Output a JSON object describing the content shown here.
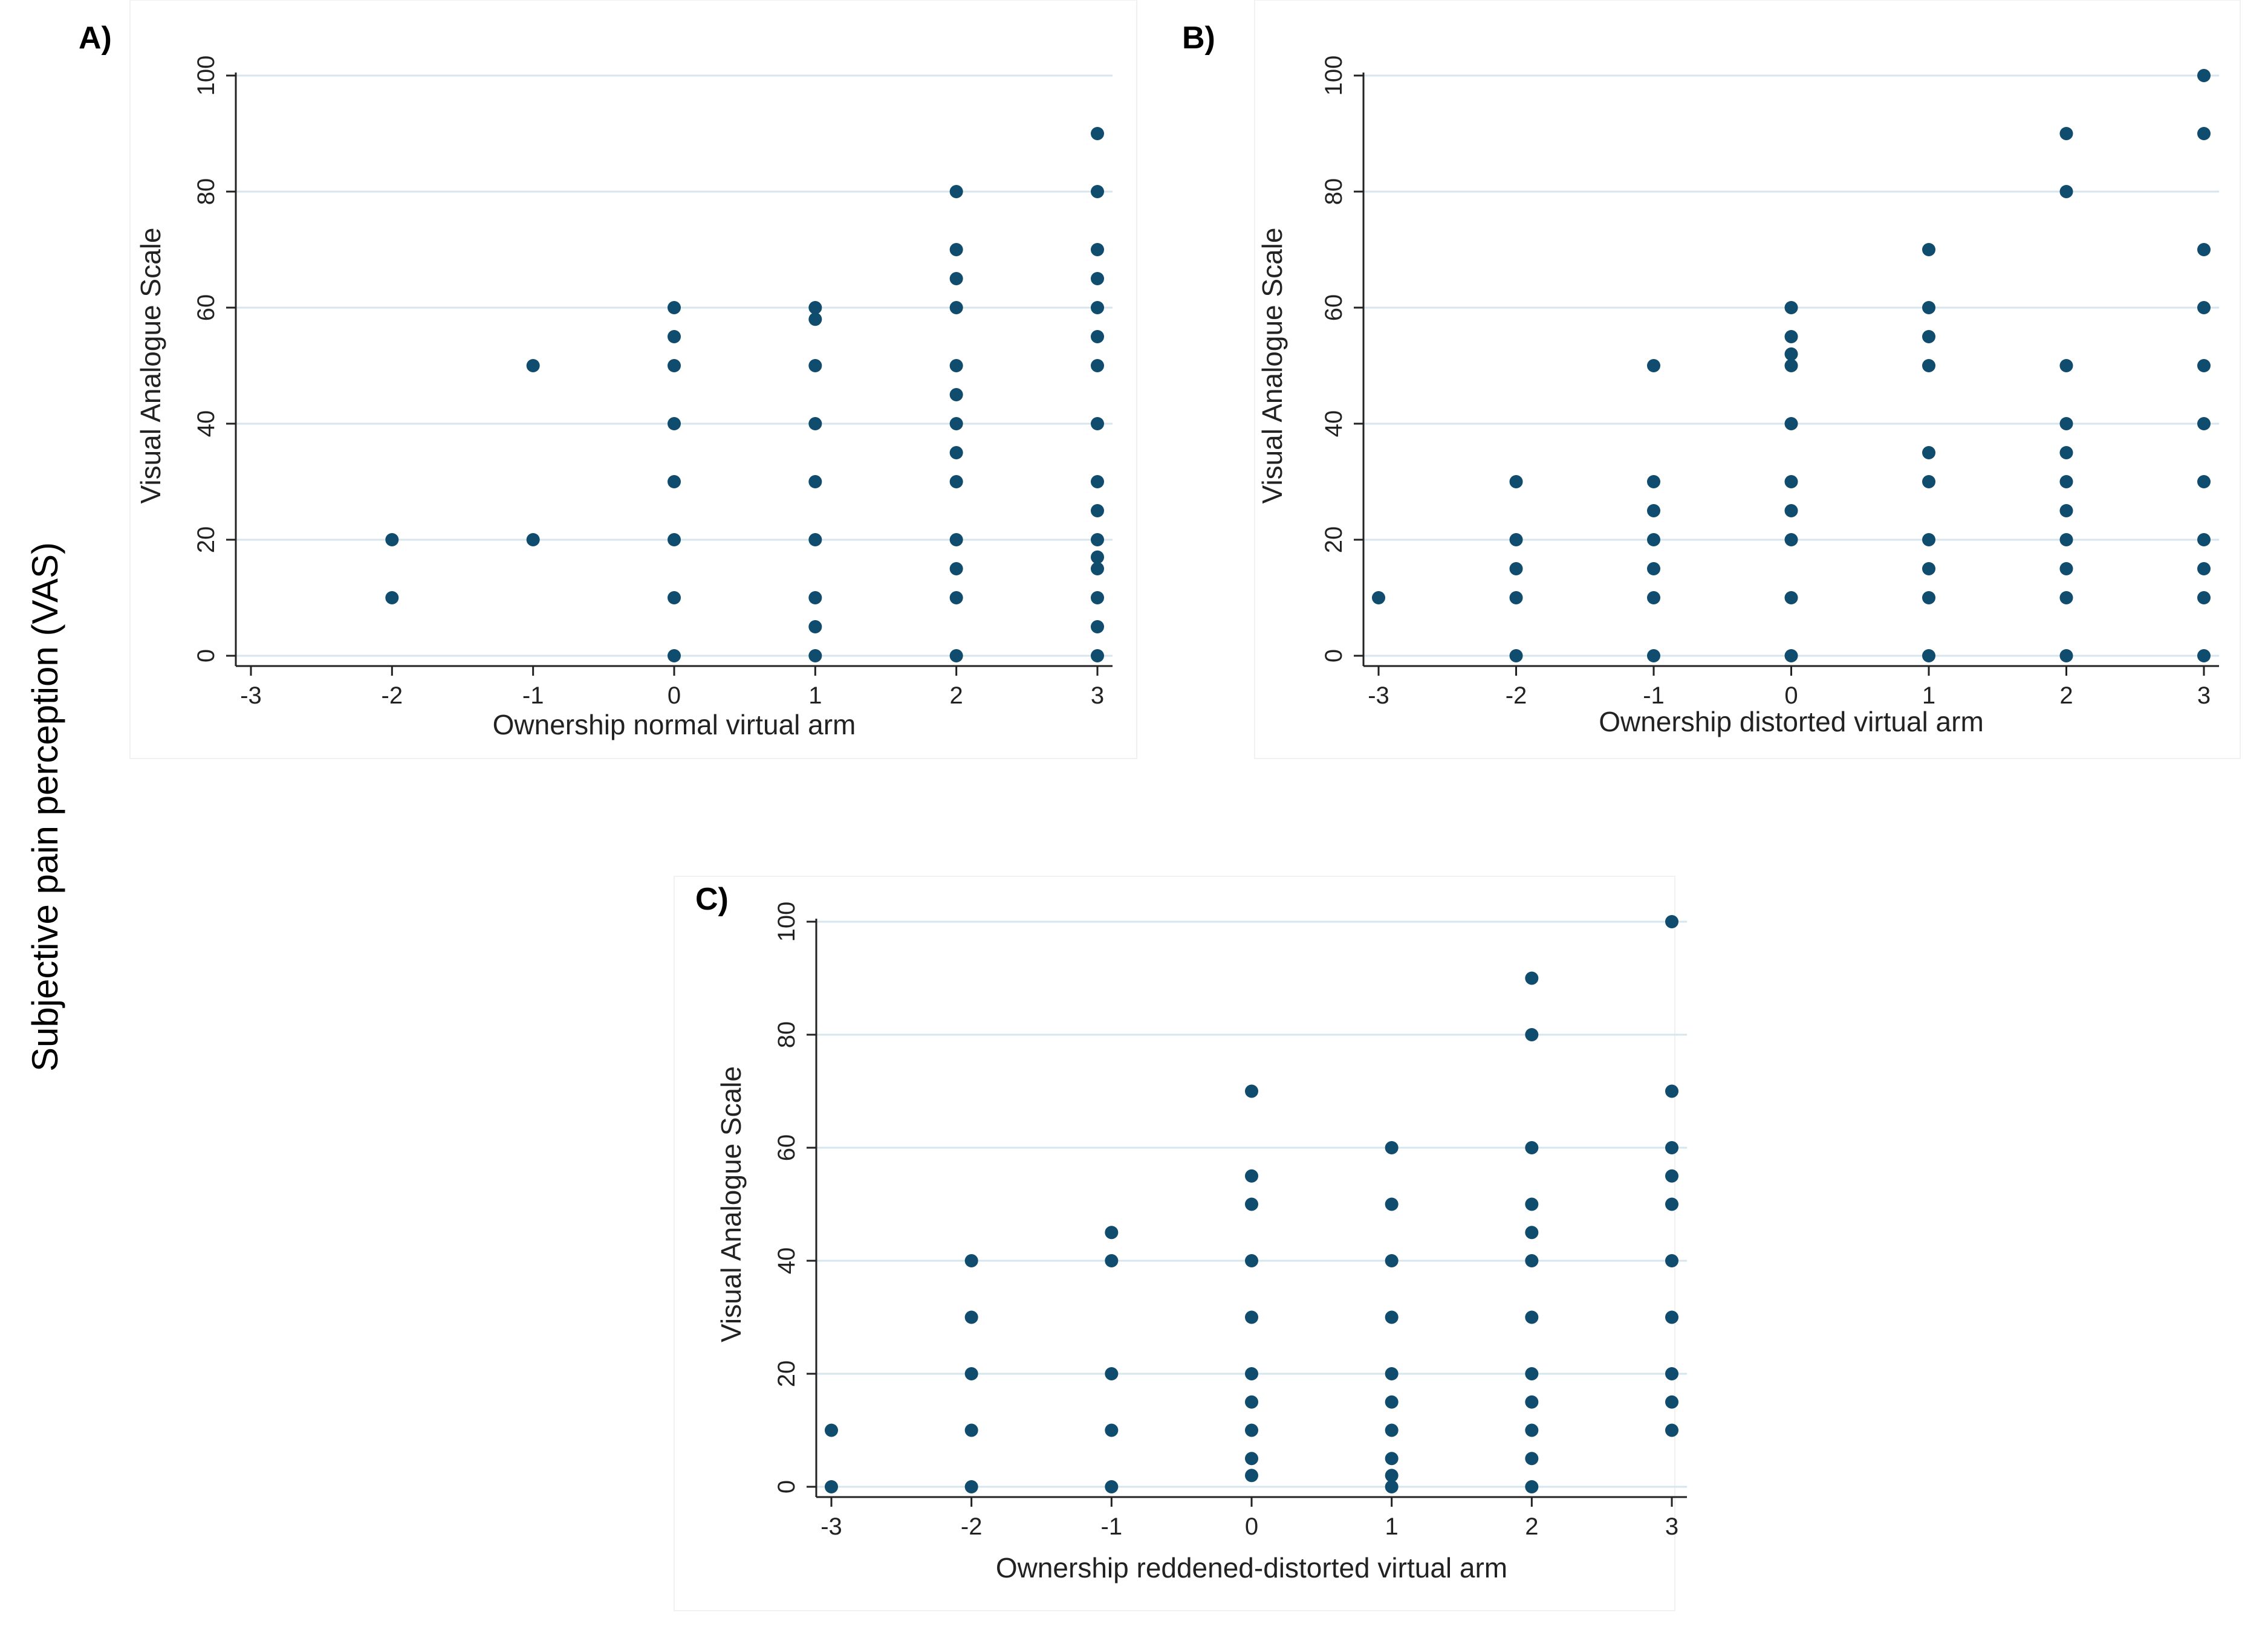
{
  "figure": {
    "ylabel_global": "Subjective pain perception (VAS)",
    "colors": {
      "marker": "#0f4c6e",
      "grid": "#d6e6ee",
      "axis": "#222222"
    }
  },
  "chart_data": [
    {
      "panel_label": "A)",
      "type": "scatter",
      "xlabel": "Ownership normal virtual arm",
      "ylabel": "Visual Analogue Scale",
      "xlim": [
        -3,
        3
      ],
      "ylim": [
        0,
        100
      ],
      "xticks": [
        -3,
        -2,
        -1,
        0,
        1,
        2,
        3
      ],
      "yticks": [
        0,
        20,
        40,
        60,
        80,
        100
      ],
      "grid": true,
      "points": [
        [
          -2,
          10
        ],
        [
          -2,
          20
        ],
        [
          -1,
          20
        ],
        [
          -1,
          50
        ],
        [
          0,
          0
        ],
        [
          0,
          10
        ],
        [
          0,
          20
        ],
        [
          0,
          30
        ],
        [
          0,
          40
        ],
        [
          0,
          50
        ],
        [
          0,
          55
        ],
        [
          0,
          60
        ],
        [
          1,
          0
        ],
        [
          1,
          5
        ],
        [
          1,
          10
        ],
        [
          1,
          20
        ],
        [
          1,
          30
        ],
        [
          1,
          40
        ],
        [
          1,
          50
        ],
        [
          1,
          58
        ],
        [
          1,
          60
        ],
        [
          2,
          0
        ],
        [
          2,
          10
        ],
        [
          2,
          15
        ],
        [
          2,
          20
        ],
        [
          2,
          30
        ],
        [
          2,
          35
        ],
        [
          2,
          40
        ],
        [
          2,
          45
        ],
        [
          2,
          50
        ],
        [
          2,
          60
        ],
        [
          2,
          65
        ],
        [
          2,
          70
        ],
        [
          2,
          80
        ],
        [
          3,
          0
        ],
        [
          3,
          5
        ],
        [
          3,
          10
        ],
        [
          3,
          15
        ],
        [
          3,
          17
        ],
        [
          3,
          20
        ],
        [
          3,
          25
        ],
        [
          3,
          30
        ],
        [
          3,
          40
        ],
        [
          3,
          50
        ],
        [
          3,
          55
        ],
        [
          3,
          60
        ],
        [
          3,
          65
        ],
        [
          3,
          70
        ],
        [
          3,
          80
        ],
        [
          3,
          90
        ]
      ]
    },
    {
      "panel_label": "B)",
      "type": "scatter",
      "xlabel": "Ownership distorted virtual arm",
      "ylabel": "Visual Analogue Scale",
      "xlim": [
        -3,
        3
      ],
      "ylim": [
        0,
        100
      ],
      "xticks": [
        -3,
        -2,
        -1,
        0,
        1,
        2,
        3
      ],
      "yticks": [
        0,
        20,
        40,
        60,
        80,
        100
      ],
      "grid": true,
      "points": [
        [
          -3,
          10
        ],
        [
          -2,
          0
        ],
        [
          -2,
          10
        ],
        [
          -2,
          15
        ],
        [
          -2,
          20
        ],
        [
          -2,
          30
        ],
        [
          -1,
          0
        ],
        [
          -1,
          10
        ],
        [
          -1,
          15
        ],
        [
          -1,
          20
        ],
        [
          -1,
          25
        ],
        [
          -1,
          30
        ],
        [
          -1,
          50
        ],
        [
          0,
          0
        ],
        [
          0,
          10
        ],
        [
          0,
          20
        ],
        [
          0,
          25
        ],
        [
          0,
          30
        ],
        [
          0,
          40
        ],
        [
          0,
          50
        ],
        [
          0,
          52
        ],
        [
          0,
          55
        ],
        [
          0,
          60
        ],
        [
          1,
          0
        ],
        [
          1,
          10
        ],
        [
          1,
          15
        ],
        [
          1,
          20
        ],
        [
          1,
          30
        ],
        [
          1,
          35
        ],
        [
          1,
          50
        ],
        [
          1,
          55
        ],
        [
          1,
          60
        ],
        [
          1,
          70
        ],
        [
          2,
          0
        ],
        [
          2,
          10
        ],
        [
          2,
          15
        ],
        [
          2,
          20
        ],
        [
          2,
          25
        ],
        [
          2,
          30
        ],
        [
          2,
          35
        ],
        [
          2,
          40
        ],
        [
          2,
          50
        ],
        [
          2,
          80
        ],
        [
          2,
          90
        ],
        [
          3,
          0
        ],
        [
          3,
          10
        ],
        [
          3,
          15
        ],
        [
          3,
          20
        ],
        [
          3,
          30
        ],
        [
          3,
          40
        ],
        [
          3,
          50
        ],
        [
          3,
          60
        ],
        [
          3,
          70
        ],
        [
          3,
          90
        ],
        [
          3,
          100
        ]
      ]
    },
    {
      "panel_label": "C)",
      "type": "scatter",
      "xlabel": "Ownership reddened-distorted virtual arm",
      "ylabel": "Visual Analogue Scale",
      "xlim": [
        -3,
        3
      ],
      "ylim": [
        0,
        100
      ],
      "xticks": [
        -3,
        -2,
        -1,
        0,
        1,
        2,
        3
      ],
      "yticks": [
        0,
        20,
        40,
        60,
        80,
        100
      ],
      "grid": true,
      "points": [
        [
          -3,
          0
        ],
        [
          -3,
          10
        ],
        [
          -2,
          0
        ],
        [
          -2,
          10
        ],
        [
          -2,
          20
        ],
        [
          -2,
          30
        ],
        [
          -2,
          40
        ],
        [
          -1,
          0
        ],
        [
          -1,
          10
        ],
        [
          -1,
          20
        ],
        [
          -1,
          40
        ],
        [
          -1,
          45
        ],
        [
          0,
          2
        ],
        [
          0,
          5
        ],
        [
          0,
          10
        ],
        [
          0,
          15
        ],
        [
          0,
          20
        ],
        [
          0,
          30
        ],
        [
          0,
          40
        ],
        [
          0,
          50
        ],
        [
          0,
          55
        ],
        [
          0,
          70
        ],
        [
          1,
          0
        ],
        [
          1,
          2
        ],
        [
          1,
          5
        ],
        [
          1,
          10
        ],
        [
          1,
          15
        ],
        [
          1,
          20
        ],
        [
          1,
          30
        ],
        [
          1,
          40
        ],
        [
          1,
          50
        ],
        [
          1,
          60
        ],
        [
          2,
          0
        ],
        [
          2,
          5
        ],
        [
          2,
          10
        ],
        [
          2,
          15
        ],
        [
          2,
          20
        ],
        [
          2,
          30
        ],
        [
          2,
          40
        ],
        [
          2,
          45
        ],
        [
          2,
          50
        ],
        [
          2,
          60
        ],
        [
          2,
          80
        ],
        [
          2,
          90
        ],
        [
          3,
          10
        ],
        [
          3,
          15
        ],
        [
          3,
          20
        ],
        [
          3,
          30
        ],
        [
          3,
          40
        ],
        [
          3,
          50
        ],
        [
          3,
          55
        ],
        [
          3,
          60
        ],
        [
          3,
          70
        ],
        [
          3,
          100
        ]
      ]
    }
  ]
}
